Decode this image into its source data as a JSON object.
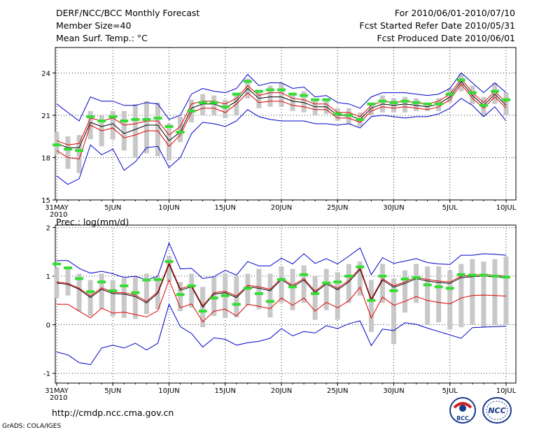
{
  "header": {
    "title": "DERF/NCC/BCC Monthly Forecast",
    "member_size": "Member Size=40",
    "variable_temp": "Mean Surf. Temp.: °C",
    "period": "For 2010/06/01-2010/07/10",
    "start_date": "Fcst Started Refer Date 2010/05/31",
    "produced_date": "Fcst Produced Date 2010/06/01"
  },
  "footer": {
    "url": "http://cmdp.ncc.cma.gov.cn",
    "grads": "GrADS: COLA/IGES",
    "logo1_text": "BCC",
    "logo2_text": "NCC"
  },
  "colors": {
    "mean": "#000000",
    "ensemble_range": "#0000cc",
    "spread": "#dd0000",
    "box": "#c8c8c8",
    "obs": "#33dd33",
    "grid": "#000000"
  },
  "chart_data": [
    {
      "type": "line",
      "title": "Mean Surf. Temp.: °C",
      "ylim": [
        15,
        25.8
      ],
      "yticks": [
        15,
        18,
        21,
        24
      ],
      "xlim": [
        0,
        40
      ],
      "x_tick_positions": [
        0,
        5,
        10,
        15,
        20,
        25,
        30,
        35,
        40
      ],
      "x_tick_labels": [
        "31MAY",
        "5JUN",
        "10JUN",
        "15JUN",
        "20JUN",
        "25JUN",
        "30JUN",
        "5JUL",
        "10JUL"
      ],
      "x_year_label": "2010",
      "series": [
        {
          "name": "mean",
          "values": [
            19.0,
            18.7,
            18.7,
            20.5,
            20.2,
            20.4,
            19.7,
            20.0,
            20.3,
            20.3,
            19.2,
            19.8,
            21.5,
            21.8,
            21.8,
            21.5,
            22.0,
            22.9,
            22.2,
            22.3,
            22.3,
            22.0,
            21.9,
            21.6,
            21.6,
            21.0,
            21.0,
            20.7,
            21.5,
            21.8,
            21.7,
            21.8,
            21.7,
            21.6,
            21.8,
            22.3,
            23.4,
            22.4,
            21.7,
            22.5,
            21.7
          ]
        },
        {
          "name": "max",
          "values": [
            21.8,
            21.2,
            20.6,
            22.3,
            22.0,
            22.0,
            21.7,
            21.7,
            21.9,
            21.8,
            20.7,
            21.0,
            22.5,
            22.9,
            22.7,
            22.6,
            22.9,
            23.9,
            23.1,
            23.3,
            23.3,
            22.9,
            23.0,
            22.3,
            22.4,
            21.9,
            21.8,
            21.5,
            22.3,
            22.6,
            22.6,
            22.6,
            22.5,
            22.4,
            22.5,
            22.9,
            24.0,
            23.3,
            22.6,
            23.3,
            22.6
          ]
        },
        {
          "name": "min",
          "values": [
            16.7,
            16.1,
            16.5,
            18.9,
            18.2,
            18.6,
            17.1,
            17.7,
            18.7,
            18.8,
            17.3,
            18.0,
            19.7,
            20.5,
            20.4,
            20.2,
            20.6,
            21.4,
            20.9,
            20.7,
            20.6,
            20.6,
            20.6,
            20.4,
            20.4,
            20.3,
            20.4,
            20.1,
            20.9,
            21.0,
            20.9,
            20.8,
            20.9,
            20.9,
            21.1,
            21.5,
            22.2,
            21.7,
            20.9,
            21.6,
            20.6
          ]
        },
        {
          "name": "upper",
          "values": [
            19.2,
            18.9,
            19.0,
            20.8,
            20.6,
            20.8,
            20.3,
            20.4,
            20.6,
            20.6,
            19.6,
            20.2,
            21.8,
            22.0,
            22.0,
            21.8,
            22.2,
            23.1,
            22.4,
            22.6,
            22.6,
            22.2,
            22.1,
            21.8,
            21.8,
            21.2,
            21.2,
            20.9,
            21.7,
            22.0,
            21.9,
            22.0,
            21.9,
            21.8,
            22.0,
            22.5,
            23.6,
            22.6,
            21.9,
            22.7,
            21.9
          ]
        },
        {
          "name": "lower",
          "values": [
            18.5,
            18.0,
            17.9,
            20.3,
            19.9,
            20.1,
            19.4,
            19.6,
            19.9,
            19.9,
            18.8,
            19.6,
            21.2,
            21.5,
            21.5,
            21.2,
            21.8,
            22.6,
            21.9,
            22.0,
            22.0,
            21.7,
            21.6,
            21.4,
            21.4,
            20.8,
            20.8,
            20.5,
            21.3,
            21.6,
            21.5,
            21.6,
            21.5,
            21.4,
            21.6,
            22.1,
            23.2,
            22.2,
            21.5,
            22.3,
            21.5
          ]
        }
      ],
      "boxes": [
        [
          18.2,
          19.8
        ],
        [
          17.2,
          19.5
        ],
        [
          16.9,
          19.6
        ],
        [
          19.3,
          21.3
        ],
        [
          18.8,
          21.0
        ],
        [
          19.3,
          21.3
        ],
        [
          18.5,
          21.3
        ],
        [
          18.0,
          21.8
        ],
        [
          18.3,
          22.0
        ],
        [
          18.1,
          21.9
        ],
        [
          17.8,
          20.4
        ],
        [
          19.1,
          20.9
        ],
        [
          20.5,
          22.1
        ],
        [
          21.0,
          22.5
        ],
        [
          21.0,
          22.4
        ],
        [
          20.8,
          22.1
        ],
        [
          21.0,
          22.6
        ],
        [
          22.2,
          23.6
        ],
        [
          21.5,
          22.8
        ],
        [
          21.6,
          23.1
        ],
        [
          21.6,
          23.3
        ],
        [
          21.3,
          22.6
        ],
        [
          21.2,
          22.7
        ],
        [
          21.0,
          22.1
        ],
        [
          21.1,
          22.1
        ],
        [
          20.6,
          21.5
        ],
        [
          20.4,
          21.5
        ],
        [
          20.2,
          21.2
        ],
        [
          21.0,
          21.9
        ],
        [
          21.2,
          22.4
        ],
        [
          21.2,
          22.2
        ],
        [
          21.2,
          22.3
        ],
        [
          21.3,
          22.2
        ],
        [
          21.3,
          21.9
        ],
        [
          21.3,
          22.2
        ],
        [
          21.9,
          22.9
        ],
        [
          22.7,
          23.9
        ],
        [
          21.8,
          23.1
        ],
        [
          21.0,
          22.3
        ],
        [
          21.8,
          23.3
        ],
        [
          21.0,
          22.6
        ]
      ],
      "observed": [
        18.9,
        18.6,
        18.5,
        20.9,
        20.6,
        20.9,
        20.6,
        20.7,
        20.7,
        20.8,
        20.2,
        19.8,
        21.3,
        21.9,
        21.9,
        21.6,
        22.5,
        23.4,
        22.7,
        22.8,
        22.8,
        22.5,
        22.4,
        22.1,
        22.1,
        21.1,
        21.0,
        20.7,
        21.8,
        22.0,
        21.9,
        22.0,
        21.9,
        21.8,
        21.8,
        22.5,
        23.5,
        22.6,
        21.7,
        22.7,
        22.1
      ]
    },
    {
      "type": "line",
      "title": "Prec.: log(mm/d)",
      "ylim": [
        -1.2,
        2.05
      ],
      "yticks": [
        -1,
        0,
        1,
        2
      ],
      "xlim": [
        0,
        40
      ],
      "x_tick_positions": [
        0,
        5,
        10,
        15,
        20,
        25,
        30,
        35,
        40
      ],
      "x_tick_labels": [
        "31MAY",
        "5JUN",
        "10JUN",
        "15JUN",
        "20JUN",
        "25JUN",
        "30JUN",
        "5JUL",
        "10JUL"
      ],
      "x_year_label": "2010",
      "series": [
        {
          "name": "mean",
          "values": [
            0.86,
            0.83,
            0.73,
            0.56,
            0.73,
            0.64,
            0.63,
            0.58,
            0.45,
            0.65,
            1.24,
            0.71,
            0.78,
            0.36,
            0.63,
            0.66,
            0.56,
            0.78,
            0.75,
            0.7,
            0.93,
            0.78,
            0.92,
            0.66,
            0.84,
            0.72,
            0.88,
            1.14,
            0.5,
            0.92,
            0.77,
            0.85,
            0.95,
            0.9,
            0.87,
            0.85,
            0.97,
            0.99,
            1.0,
            0.99,
            0.97
          ]
        },
        {
          "name": "max",
          "values": [
            1.32,
            1.32,
            1.16,
            1.06,
            1.1,
            1.05,
            0.97,
            1.0,
            0.92,
            1.0,
            1.68,
            1.15,
            1.16,
            0.95,
            0.99,
            1.12,
            1.02,
            1.3,
            1.21,
            1.21,
            1.37,
            1.25,
            1.46,
            1.26,
            1.36,
            1.25,
            1.41,
            1.58,
            1.03,
            1.38,
            1.26,
            1.31,
            1.36,
            1.28,
            1.25,
            1.24,
            1.43,
            1.43,
            1.46,
            1.45,
            1.43
          ]
        },
        {
          "name": "min",
          "values": [
            -0.56,
            -0.62,
            -0.78,
            -0.82,
            -0.48,
            -0.42,
            -0.48,
            -0.38,
            -0.52,
            -0.38,
            0.42,
            -0.04,
            -0.18,
            -0.46,
            -0.27,
            -0.3,
            -0.42,
            -0.37,
            -0.34,
            -0.28,
            -0.08,
            -0.23,
            -0.14,
            -0.17,
            -0.02,
            -0.08,
            0.02,
            0.08,
            -0.43,
            -0.09,
            -0.12,
            0.04,
            0.01,
            -0.07,
            -0.14,
            -0.21,
            -0.28,
            -0.06,
            -0.05,
            -0.04,
            -0.03
          ]
        },
        {
          "name": "upper",
          "values": [
            0.88,
            0.85,
            0.75,
            0.59,
            0.76,
            0.67,
            0.66,
            0.61,
            0.48,
            0.68,
            1.27,
            0.74,
            0.81,
            0.39,
            0.66,
            0.69,
            0.59,
            0.81,
            0.78,
            0.73,
            0.96,
            0.81,
            0.95,
            0.69,
            0.87,
            0.75,
            0.91,
            1.17,
            0.53,
            0.95,
            0.8,
            0.88,
            0.98,
            0.93,
            0.9,
            0.88,
            1.0,
            1.02,
            1.03,
            1.02,
            1.0
          ]
        },
        {
          "name": "lower",
          "values": [
            0.42,
            0.42,
            0.28,
            0.14,
            0.34,
            0.24,
            0.26,
            0.21,
            0.16,
            0.29,
            0.92,
            0.35,
            0.43,
            0.06,
            0.28,
            0.32,
            0.18,
            0.42,
            0.38,
            0.33,
            0.55,
            0.4,
            0.55,
            0.28,
            0.46,
            0.35,
            0.49,
            0.77,
            0.14,
            0.57,
            0.4,
            0.48,
            0.58,
            0.5,
            0.46,
            0.43,
            0.55,
            0.6,
            0.61,
            0.6,
            0.59
          ]
        }
      ],
      "boxes": [
        [
          0.55,
          1.18
        ],
        [
          0.6,
          1.15
        ],
        [
          0.28,
          1.05
        ],
        [
          0.18,
          0.92
        ],
        [
          0.32,
          1.05
        ],
        [
          0.17,
          0.92
        ],
        [
          0.14,
          0.95
        ],
        [
          0.12,
          1.0
        ],
        [
          0.22,
          1.05
        ],
        [
          0.32,
          0.98
        ],
        [
          0.88,
          1.42
        ],
        [
          0.28,
          0.88
        ],
        [
          0.35,
          1.05
        ],
        [
          -0.05,
          0.78
        ],
        [
          0.18,
          1.0
        ],
        [
          0.14,
          1.05
        ],
        [
          0.15,
          1.0
        ],
        [
          0.4,
          1.05
        ],
        [
          0.32,
          1.15
        ],
        [
          0.15,
          1.05
        ],
        [
          0.45,
          1.2
        ],
        [
          0.3,
          1.15
        ],
        [
          0.45,
          1.22
        ],
        [
          0.1,
          1.0
        ],
        [
          0.3,
          1.15
        ],
        [
          0.1,
          1.08
        ],
        [
          0.45,
          1.25
        ],
        [
          0.6,
          1.3
        ],
        [
          -0.15,
          0.92
        ],
        [
          0.45,
          1.25
        ],
        [
          -0.4,
          0.95
        ],
        [
          0.25,
          1.12
        ],
        [
          0.45,
          1.25
        ],
        [
          0.0,
          1.2
        ],
        [
          0.05,
          1.2
        ],
        [
          -0.1,
          1.12
        ],
        [
          -0.05,
          1.25
        ],
        [
          0.0,
          1.35
        ],
        [
          -0.05,
          1.3
        ],
        [
          0.0,
          1.35
        ],
        [
          0.0,
          1.4
        ]
      ],
      "observed": [
        1.25,
        1.17,
        0.95,
        0.68,
        0.88,
        0.7,
        0.8,
        0.66,
        0.92,
        0.93,
        1.3,
        0.62,
        0.8,
        0.28,
        0.55,
        0.6,
        0.42,
        0.75,
        0.64,
        0.48,
        0.93,
        0.78,
        1.03,
        0.64,
        0.86,
        0.88,
        1.0,
        1.19,
        0.5,
        1.0,
        0.7,
        0.94,
        0.97,
        0.82,
        0.78,
        0.75,
        1.03,
        1.02,
        1.02,
        1.0,
        0.98
      ]
    }
  ]
}
